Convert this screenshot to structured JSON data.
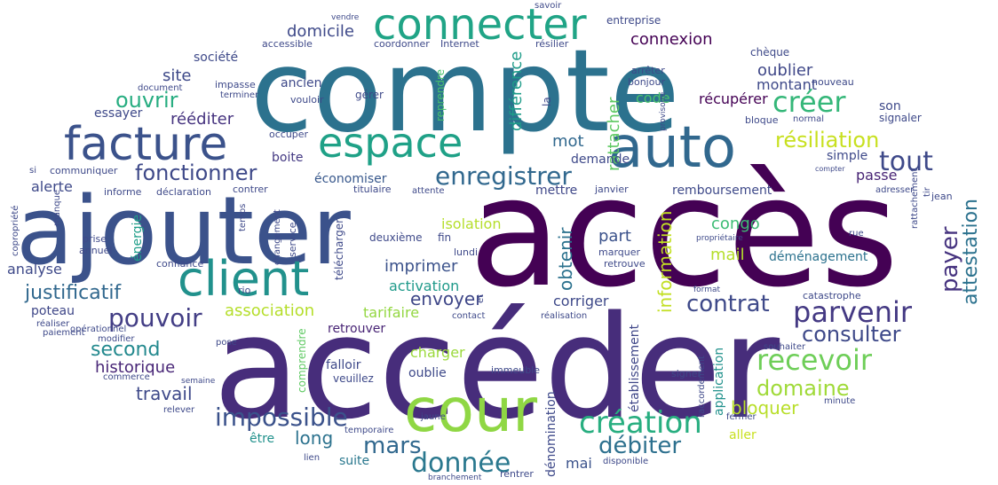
{
  "words": [
    {
      "text": "accès",
      "color": "#440154"
    },
    {
      "text": "accéder",
      "color": "#472d7b"
    },
    {
      "text": "compte",
      "color": "#2c728e"
    },
    {
      "text": "ajouter",
      "color": "#3b528b"
    },
    {
      "text": "cour",
      "color": "#8fd744"
    },
    {
      "text": "facture",
      "color": "#3b528b"
    },
    {
      "text": "client",
      "color": "#21918c"
    },
    {
      "text": "auto",
      "color": "#31688e"
    },
    {
      "text": "connecter",
      "color": "#20a486"
    },
    {
      "text": "espace",
      "color": "#1fa187"
    },
    {
      "text": "créer",
      "color": "#35b779"
    },
    {
      "text": "tout",
      "color": "#3e4989"
    },
    {
      "text": "enregistrer",
      "color": "#31688e"
    },
    {
      "text": "parvenir",
      "color": "#443983"
    },
    {
      "text": "recevoir",
      "color": "#6ece58"
    },
    {
      "text": "création",
      "color": "#28ae80"
    },
    {
      "text": "impossible",
      "color": "#3b528b"
    },
    {
      "text": "donnée",
      "color": "#2a788e"
    },
    {
      "text": "pouvoir",
      "color": "#433e85"
    },
    {
      "text": "fonctionner",
      "color": "#3e4989"
    },
    {
      "text": "ouvrir",
      "color": "#27ad81"
    },
    {
      "text": "résiliation",
      "color": "#c8e020"
    },
    {
      "text": "contrat",
      "color": "#3e4989"
    },
    {
      "text": "consulter",
      "color": "#3e4989"
    },
    {
      "text": "domaine",
      "color": "#a0da39"
    },
    {
      "text": "débiter",
      "color": "#2d708e"
    },
    {
      "text": "mars",
      "color": "#31688e"
    },
    {
      "text": "second",
      "color": "#23898e"
    },
    {
      "text": "payer",
      "color": "#46337f"
    },
    {
      "text": "bloquer",
      "color": "#b8de29"
    },
    {
      "text": "historique",
      "color": "#482677"
    },
    {
      "text": "association",
      "color": "#b5de2b"
    },
    {
      "text": "travail",
      "color": "#3e4989"
    },
    {
      "text": "long",
      "color": "#2c728e"
    },
    {
      "text": "imprimer",
      "color": "#3b528b"
    },
    {
      "text": "envoyer",
      "color": "#3f4788"
    },
    {
      "text": "obtenir",
      "color": "#2c728e"
    },
    {
      "text": "attestation",
      "color": "#2c728e"
    },
    {
      "text": "justificatif",
      "color": "#31688e"
    },
    {
      "text": "information",
      "color": "#c2df23"
    },
    {
      "text": "domicile",
      "color": "#3e4989"
    },
    {
      "text": "connexion",
      "color": "#440154"
    },
    {
      "text": "oublier",
      "color": "#3f4788"
    },
    {
      "text": "mail",
      "color": "#b5de2b"
    },
    {
      "text": "congo",
      "color": "#3dbc74"
    },
    {
      "text": "site",
      "color": "#3e4989"
    },
    {
      "text": "rééditer",
      "color": "#46337f"
    },
    {
      "text": "mot",
      "color": "#31688e"
    },
    {
      "text": "rattacher",
      "color": "#5ec962"
    },
    {
      "text": "différence",
      "color": "#1e9c89"
    },
    {
      "text": "récupérer",
      "color": "#440154"
    },
    {
      "text": "montant",
      "color": "#3e4989"
    },
    {
      "text": "code",
      "color": "#4ac16d"
    },
    {
      "text": "passe",
      "color": "#482475"
    },
    {
      "text": "part",
      "color": "#3b528b"
    },
    {
      "text": "charger",
      "color": "#9bd93c"
    },
    {
      "text": "activation",
      "color": "#1f9a8a"
    },
    {
      "text": "tarifaire",
      "color": "#93d741"
    },
    {
      "text": "corriger",
      "color": "#3e4989"
    },
    {
      "text": "retrouver",
      "color": "#482475"
    },
    {
      "text": "mai",
      "color": "#3b528b"
    },
    {
      "text": "aller",
      "color": "#c8e020"
    },
    {
      "text": "suite",
      "color": "#2a788e"
    },
    {
      "text": "être",
      "color": "#21918c"
    },
    {
      "text": "application",
      "color": "#21918c"
    },
    {
      "text": "établissement",
      "color": "#3f4788"
    },
    {
      "text": "dénomination",
      "color": "#3e4989"
    },
    {
      "text": "isolation",
      "color": "#b5de2b"
    },
    {
      "text": "demande",
      "color": "#3e4989"
    },
    {
      "text": "alerte",
      "color": "#3e4989"
    },
    {
      "text": "économiser",
      "color": "#38588c"
    },
    {
      "text": "analyse",
      "color": "#3e4989"
    },
    {
      "text": "poteau",
      "color": "#3f4788"
    },
    {
      "text": "énergie",
      "color": "#1f9e89"
    },
    {
      "text": "boite",
      "color": "#443983"
    },
    {
      "text": "essayer",
      "color": "#3e4989"
    },
    {
      "text": "société",
      "color": "#3e4989"
    },
    {
      "text": "ancien",
      "color": "#3e4989"
    },
    {
      "text": "mettre",
      "color": "#3f4788"
    },
    {
      "text": "remboursement",
      "color": "#3e4989"
    },
    {
      "text": "déménagement",
      "color": "#2c728e"
    },
    {
      "text": "oublie",
      "color": "#3e4989"
    },
    {
      "text": "falloir",
      "color": "#3e4989"
    },
    {
      "text": "veuillez",
      "color": "#3e4989"
    },
    {
      "text": "comprendre",
      "color": "#5ec962"
    },
    {
      "text": "télécharger",
      "color": "#3e4989"
    },
    {
      "text": "son",
      "color": "#3e4989"
    },
    {
      "text": "simple",
      "color": "#3e4989"
    },
    {
      "text": "chèque",
      "color": "#3e4989"
    },
    {
      "text": "gérer",
      "color": "#3e4989"
    },
    {
      "text": "la",
      "color": "#3e4989"
    },
    {
      "text": "reprendre",
      "color": "#4ac16d"
    },
    {
      "text": "signaler",
      "color": "#3e4989"
    },
    {
      "text": "fin",
      "color": "#3e4989"
    },
    {
      "text": "lundi",
      "color": "#3e4989"
    },
    {
      "text": "deuxième",
      "color": "#3e4989"
    },
    {
      "text": "service",
      "color": "#3e4989"
    },
    {
      "text": "marquer",
      "color": "#3e4989"
    },
    {
      "text": "retrouve",
      "color": "#3e4989"
    },
    {
      "text": "janvier",
      "color": "#3e4989"
    },
    {
      "text": "titulaire",
      "color": "#3e4989"
    },
    {
      "text": "contrer",
      "color": "#3e4989"
    },
    {
      "text": "informe",
      "color": "#3e4989"
    },
    {
      "text": "communiquer",
      "color": "#3e4989"
    },
    {
      "text": "occuper",
      "color": "#3e4989"
    },
    {
      "text": "vouloir",
      "color": "#3e4989"
    },
    {
      "text": "terminer",
      "color": "#3e4989"
    },
    {
      "text": "document",
      "color": "#3e4989"
    },
    {
      "text": "impasse",
      "color": "#3e4989"
    },
    {
      "text": "confiance",
      "color": "#3e4989"
    },
    {
      "text": "annuel",
      "color": "#3e4989"
    },
    {
      "text": "prise",
      "color": "#3e4989"
    },
    {
      "text": "rio",
      "color": "#3e4989"
    },
    {
      "text": "modifier",
      "color": "#3e4989"
    },
    {
      "text": "paiement",
      "color": "#3e4989"
    },
    {
      "text": "réaliser",
      "color": "#3e4989"
    },
    {
      "text": "opérationnel",
      "color": "#3e4989"
    },
    {
      "text": "commerce",
      "color": "#3e4989"
    },
    {
      "text": "relever",
      "color": "#3e4989"
    },
    {
      "text": "temporaire",
      "color": "#3e4989"
    },
    {
      "text": "lien",
      "color": "#3e4989"
    },
    {
      "text": "jaune",
      "color": "#3e4989"
    },
    {
      "text": "disponible",
      "color": "#3e4989"
    },
    {
      "text": "rentrer",
      "color": "#3e4989"
    },
    {
      "text": "branchement",
      "color": "#3e4989"
    },
    {
      "text": "immeuble",
      "color": "#3e4989"
    },
    {
      "text": "contact",
      "color": "#3e4989"
    },
    {
      "text": "réalisation",
      "color": "#3e4989"
    },
    {
      "text": "et",
      "color": "#3e4989"
    },
    {
      "text": "pose",
      "color": "#3e4989"
    },
    {
      "text": "semaine",
      "color": "#3e4989"
    },
    {
      "text": "signer",
      "color": "#3e4989"
    },
    {
      "text": "raccordement",
      "color": "#3e4989"
    },
    {
      "text": "fermer",
      "color": "#3e4989"
    },
    {
      "text": "souhaiter",
      "color": "#3e4989"
    },
    {
      "text": "minute",
      "color": "#3e4989"
    },
    {
      "text": "catastrophe",
      "color": "#3e4989"
    },
    {
      "text": "format",
      "color": "#3e4989"
    },
    {
      "text": "propriétaire",
      "color": "#3e4989"
    },
    {
      "text": "rue",
      "color": "#3e4989"
    },
    {
      "text": "adresser",
      "color": "#3e4989"
    },
    {
      "text": "jean",
      "color": "#3e4989"
    },
    {
      "text": "tir",
      "color": "#3e4989"
    },
    {
      "text": "rattachement",
      "color": "#3e4989"
    },
    {
      "text": "compter",
      "color": "#3e4989"
    },
    {
      "text": "normal",
      "color": "#3e4989"
    },
    {
      "text": "bloque",
      "color": "#3e4989"
    },
    {
      "text": "provisoire",
      "color": "#3e4989"
    },
    {
      "text": "bonjour",
      "color": "#3e4989"
    },
    {
      "text": "arrêter",
      "color": "#3e4989"
    },
    {
      "text": "nouveau",
      "color": "#3e4989"
    },
    {
      "text": "résilier",
      "color": "#3e4989"
    },
    {
      "text": "entreprise",
      "color": "#3e4989"
    },
    {
      "text": "savoir",
      "color": "#3e4989"
    },
    {
      "text": "vendre",
      "color": "#3e4989"
    },
    {
      "text": "accessible",
      "color": "#3e4989"
    },
    {
      "text": "coordonner",
      "color": "#3e4989"
    },
    {
      "text": "Internet",
      "color": "#3e4989"
    },
    {
      "text": "copropriété",
      "color": "#3e4989"
    },
    {
      "text": "manque",
      "color": "#3e4989"
    },
    {
      "text": "temps",
      "color": "#3e4989"
    },
    {
      "text": "changement",
      "color": "#3e4989"
    },
    {
      "text": "déclaration",
      "color": "#3e4989"
    },
    {
      "text": "attente",
      "color": "#3e4989"
    },
    {
      "text": "si",
      "color": "#3e4989"
    }
  ]
}
